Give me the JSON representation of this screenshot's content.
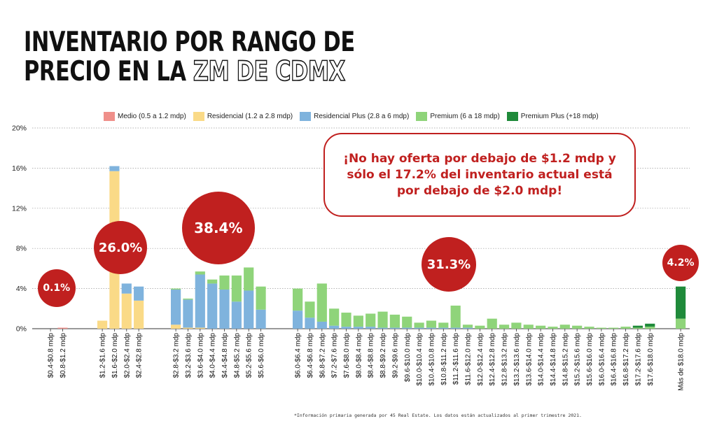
{
  "title": {
    "line1": "Inventario por rango de",
    "line2_solid": "precio en la",
    "line2_outline": "ZM de CDMX"
  },
  "legend": [
    {
      "label": "Medio (0.5 a 1.2 mdp)",
      "color": "#ef8f8a"
    },
    {
      "label": "Residencial (1.2 a 2.8 mdp)",
      "color": "#fada87"
    },
    {
      "label": "Residencial Plus (2.8 a 6 mdp)",
      "color": "#7fb3dd"
    },
    {
      "label": "Premium (6 a 18 mdp)",
      "color": "#8fd47a"
    },
    {
      "label": "Premium Plus (+18 mdp)",
      "color": "#1f8a3a"
    }
  ],
  "callout": "¡No hay oferta por debajo de $1.2 mdp y sólo el 17.2% del inventario actual está por debajo de $2.0 mdp!",
  "bubbles": [
    {
      "label": "0.1%",
      "group": 0
    },
    {
      "label": "26.0%",
      "group": 1
    },
    {
      "label": "38.4%",
      "group": 2
    },
    {
      "label": "31.3%",
      "group": 3
    },
    {
      "label": "4.2%",
      "group": 4
    }
  ],
  "footnote": "*Información primaria generada por 45 Real Estate. Los datos están actualizados al primer trimestre 2021.",
  "chart_data": {
    "type": "bar",
    "stacked": true,
    "ylim": [
      0,
      20
    ],
    "yticks": [
      "0%",
      "4%",
      "8%",
      "12%",
      "16%",
      "20%"
    ],
    "grid": true,
    "legend_position": "top",
    "groups": [
      [
        "$0.4-$0.8 mdp",
        "$0.8-$1.2 mdp"
      ],
      [
        "$1.2-$1.6 mdp",
        "$1.6-$2.0 mdp",
        "$2.0-$2.4 mdp",
        "$2.4-$2.8 mdp"
      ],
      [
        "$2.8-$3.2 mdp",
        "$3.2-$3.6 mdp",
        "$3.6-$4.0 mdp",
        "$4.0-$4.4 mdp",
        "$4.4-$4.8 mdp",
        "$4.8-$5.2 mdp",
        "$5.2-$5.6 mdp",
        "$5.6-$6.0 mdp"
      ],
      [
        "$6.0-$6.4 mdp",
        "$6.4-$6.8 mdp",
        "$6.8-$7.2 mdp",
        "$7.2-$7.6 mdp",
        "$7.6-$8.0 mdp",
        "$8.0-$8.4 mdp",
        "$8.4-$8.8 mdp",
        "$8.8-$9.2 mdp",
        "$9.2-$9.6 mdp",
        "$9.6-$10.0 mdp",
        "$10.0-$10.4 mdp",
        "$10.4-$10.8 mdp",
        "$10.8-$11.2 mdp",
        "$11.2-$11.6 mdp",
        "$11.6-$12.0 mdp",
        "$12.0-$12.4 mdp",
        "$12.4-$12.8 mdp",
        "$12.8-$13.2 mdp",
        "$13.2-$13.6 mdp",
        "$13.6-$14.0 mdp",
        "$14.0-$14.4 mdp",
        "$14.4-$14.8 mdp",
        "$14.8-$15.2 mdp",
        "$15.2-$15.6 mdp",
        "$15.6-$16.0 mdp",
        "$16.0-$16.4 mdp",
        "$16.4-$16.8 mdp",
        "$16.8-$17.2 mdp",
        "$17.2-$17.6 mdp",
        "$17.6-$18.0 mdp"
      ],
      [
        "Más de $18.0 mdp"
      ]
    ],
    "series": [
      {
        "name": "Medio (0.5 a 1.2 mdp)",
        "values": [
          0.0,
          0.1,
          0,
          0,
          0,
          0,
          0,
          0,
          0,
          0,
          0,
          0,
          0,
          0,
          0,
          0,
          0,
          0,
          0,
          0,
          0,
          0,
          0,
          0,
          0,
          0,
          0,
          0,
          0,
          0,
          0,
          0,
          0,
          0,
          0,
          0,
          0,
          0,
          0,
          0,
          0,
          0,
          0,
          0,
          0
        ]
      },
      {
        "name": "Residencial (1.2 a 2.8 mdp)",
        "values": [
          0,
          0,
          0.8,
          15.7,
          3.5,
          2.8,
          0.4,
          0.1,
          0.1,
          0,
          0,
          0,
          0,
          0,
          0,
          0,
          0,
          0,
          0,
          0,
          0,
          0,
          0,
          0,
          0,
          0,
          0,
          0,
          0,
          0,
          0,
          0,
          0,
          0,
          0,
          0,
          0,
          0,
          0,
          0,
          0,
          0,
          0,
          0,
          0
        ]
      },
      {
        "name": "Residencial Plus (2.8 a 6 mdp)",
        "values": [
          0,
          0,
          0,
          0.5,
          1.0,
          1.4,
          3.5,
          2.8,
          5.3,
          4.5,
          3.9,
          2.7,
          3.8,
          1.9,
          1.8,
          1.1,
          0.7,
          0.3,
          0.2,
          0.2,
          0.2,
          0.1,
          0.1,
          0.1,
          0.1,
          0.1,
          0.1,
          0.1,
          0.1,
          0,
          0,
          0,
          0,
          0,
          0,
          0,
          0,
          0,
          0,
          0,
          0,
          0,
          0,
          0,
          0
        ]
      },
      {
        "name": "Premium (6 a 18 mdp)",
        "values": [
          0,
          0,
          0,
          0,
          0,
          0,
          0.1,
          0.1,
          0.3,
          0.4,
          1.4,
          2.6,
          2.3,
          2.3,
          2.2,
          1.6,
          3.8,
          1.7,
          1.4,
          1.1,
          1.3,
          1.6,
          1.3,
          1.1,
          0.5,
          0.7,
          0.5,
          2.2,
          0.3,
          0.3,
          1.0,
          0.4,
          0.6,
          0.4,
          0.3,
          0.2,
          0.4,
          0.3,
          0.2,
          0.1,
          0.1,
          0.2,
          0.1,
          0.2,
          1.0
        ]
      },
      {
        "name": "Premium Plus (+18 mdp)",
        "values": [
          0,
          0,
          0,
          0,
          0,
          0,
          0,
          0,
          0,
          0,
          0,
          0,
          0,
          0,
          0,
          0,
          0,
          0,
          0,
          0,
          0,
          0,
          0,
          0,
          0,
          0,
          0,
          0,
          0,
          0,
          0,
          0,
          0,
          0,
          0,
          0,
          0,
          0,
          0,
          0,
          0,
          0,
          0.2,
          0.3,
          3.2
        ]
      }
    ]
  }
}
